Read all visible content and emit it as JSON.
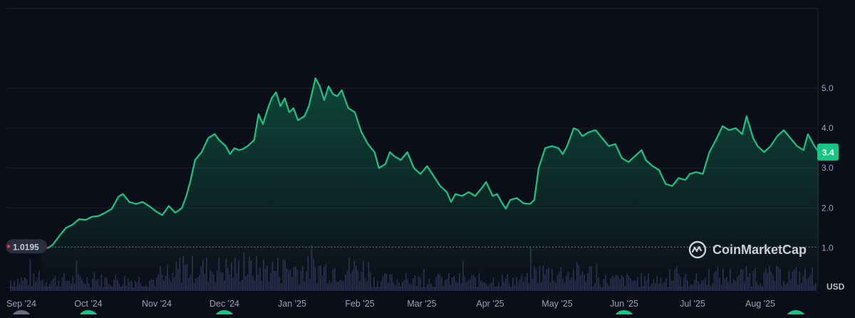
{
  "chart_data": {
    "type": "area",
    "currency": "USD",
    "x_tick_labels": [
      "Sep '24",
      "Oct '24",
      "Nov '24",
      "Dec '24",
      "Jan '25",
      "Feb '25",
      "Mar '25",
      "Apr '25",
      "May '25",
      "Jun '25",
      "Jul '25",
      "Aug '25"
    ],
    "y_tick_labels": [
      "1.0",
      "2.0",
      "3.0",
      "4.0",
      "5.0"
    ],
    "ylim": [
      0.0,
      5.9
    ],
    "baseline_label": "1.0195",
    "baseline_value": 1.0195,
    "current_label": "3.4",
    "current_value": 3.4,
    "grid": "horizontal",
    "line_color": "#16c784",
    "baseline_color": "#ea3943",
    "price_points": [
      [
        "2024-09-07",
        1.0195
      ],
      [
        "2024-09-10",
        1.0
      ],
      [
        "2024-09-12",
        1.08
      ],
      [
        "2024-09-15",
        1.3
      ],
      [
        "2024-09-18",
        1.5
      ],
      [
        "2024-09-21",
        1.58
      ],
      [
        "2024-09-24",
        1.72
      ],
      [
        "2024-09-27",
        1.7
      ],
      [
        "2024-09-30",
        1.78
      ],
      [
        "2024-10-03",
        1.8
      ],
      [
        "2024-10-06",
        1.88
      ],
      [
        "2024-10-09",
        1.98
      ],
      [
        "2024-10-12",
        2.28
      ],
      [
        "2024-10-14",
        2.35
      ],
      [
        "2024-10-17",
        2.15
      ],
      [
        "2024-10-20",
        2.1
      ],
      [
        "2024-10-23",
        2.15
      ],
      [
        "2024-10-26",
        2.05
      ],
      [
        "2024-10-29",
        1.92
      ],
      [
        "2024-11-01",
        1.82
      ],
      [
        "2024-11-04",
        2.05
      ],
      [
        "2024-11-07",
        1.88
      ],
      [
        "2024-11-10",
        2.0
      ],
      [
        "2024-11-12",
        2.3
      ],
      [
        "2024-11-14",
        2.7
      ],
      [
        "2024-11-16",
        3.2
      ],
      [
        "2024-11-19",
        3.4
      ],
      [
        "2024-11-22",
        3.75
      ],
      [
        "2024-11-25",
        3.85
      ],
      [
        "2024-11-27",
        3.7
      ],
      [
        "2024-11-30",
        3.55
      ],
      [
        "2024-12-02",
        3.35
      ],
      [
        "2024-12-04",
        3.5
      ],
      [
        "2024-12-06",
        3.45
      ],
      [
        "2024-12-08",
        3.48
      ],
      [
        "2024-12-10",
        3.55
      ],
      [
        "2024-12-13",
        3.7
      ],
      [
        "2024-12-15",
        4.35
      ],
      [
        "2024-12-17",
        4.1
      ],
      [
        "2024-12-19",
        4.45
      ],
      [
        "2024-12-21",
        4.75
      ],
      [
        "2024-12-23",
        4.9
      ],
      [
        "2024-12-25",
        4.55
      ],
      [
        "2024-12-27",
        4.75
      ],
      [
        "2024-12-29",
        4.4
      ],
      [
        "2024-12-31",
        4.5
      ],
      [
        "2025-01-02",
        4.2
      ],
      [
        "2025-01-05",
        4.3
      ],
      [
        "2025-01-07",
        4.55
      ],
      [
        "2025-01-10",
        5.25
      ],
      [
        "2025-01-12",
        5.05
      ],
      [
        "2025-01-14",
        4.7
      ],
      [
        "2025-01-16",
        5.05
      ],
      [
        "2025-01-18",
        4.85
      ],
      [
        "2025-01-20",
        4.8
      ],
      [
        "2025-01-22",
        4.95
      ],
      [
        "2025-01-25",
        4.5
      ],
      [
        "2025-01-28",
        4.4
      ],
      [
        "2025-01-31",
        3.9
      ],
      [
        "2025-02-03",
        3.6
      ],
      [
        "2025-02-06",
        3.4
      ],
      [
        "2025-02-08",
        3.0
      ],
      [
        "2025-02-11",
        3.1
      ],
      [
        "2025-02-13",
        3.4
      ],
      [
        "2025-02-15",
        3.3
      ],
      [
        "2025-02-18",
        3.2
      ],
      [
        "2025-02-21",
        3.4
      ],
      [
        "2025-02-24",
        3.0
      ],
      [
        "2025-02-27",
        2.85
      ],
      [
        "2025-03-02",
        3.05
      ],
      [
        "2025-03-05",
        2.8
      ],
      [
        "2025-03-08",
        2.55
      ],
      [
        "2025-03-11",
        2.4
      ],
      [
        "2025-03-13",
        2.15
      ],
      [
        "2025-03-15",
        2.35
      ],
      [
        "2025-03-18",
        2.3
      ],
      [
        "2025-03-21",
        2.4
      ],
      [
        "2025-03-24",
        2.3
      ],
      [
        "2025-03-27",
        2.5
      ],
      [
        "2025-03-29",
        2.65
      ],
      [
        "2025-04-01",
        2.3
      ],
      [
        "2025-04-03",
        2.35
      ],
      [
        "2025-04-05",
        2.15
      ],
      [
        "2025-04-07",
        1.98
      ],
      [
        "2025-04-09",
        2.2
      ],
      [
        "2025-04-12",
        2.25
      ],
      [
        "2025-04-15",
        2.12
      ],
      [
        "2025-04-18",
        2.1
      ],
      [
        "2025-04-20",
        2.2
      ],
      [
        "2025-04-22",
        3.0
      ],
      [
        "2025-04-25",
        3.5
      ],
      [
        "2025-04-28",
        3.55
      ],
      [
        "2025-05-01",
        3.5
      ],
      [
        "2025-05-03",
        3.35
      ],
      [
        "2025-05-05",
        3.55
      ],
      [
        "2025-05-08",
        4.0
      ],
      [
        "2025-05-10",
        3.95
      ],
      [
        "2025-05-12",
        3.8
      ],
      [
        "2025-05-15",
        3.9
      ],
      [
        "2025-05-18",
        3.95
      ],
      [
        "2025-05-21",
        3.75
      ],
      [
        "2025-05-24",
        3.55
      ],
      [
        "2025-05-27",
        3.6
      ],
      [
        "2025-05-30",
        3.25
      ],
      [
        "2025-06-02",
        3.15
      ],
      [
        "2025-06-05",
        3.3
      ],
      [
        "2025-06-08",
        3.45
      ],
      [
        "2025-06-10",
        3.2
      ],
      [
        "2025-06-13",
        3.05
      ],
      [
        "2025-06-16",
        2.95
      ],
      [
        "2025-06-19",
        2.6
      ],
      [
        "2025-06-22",
        2.55
      ],
      [
        "2025-06-25",
        2.75
      ],
      [
        "2025-06-28",
        2.7
      ],
      [
        "2025-06-30",
        2.85
      ],
      [
        "2025-07-03",
        2.9
      ],
      [
        "2025-07-06",
        2.85
      ],
      [
        "2025-07-09",
        3.4
      ],
      [
        "2025-07-12",
        3.7
      ],
      [
        "2025-07-15",
        4.05
      ],
      [
        "2025-07-18",
        3.95
      ],
      [
        "2025-07-21",
        4.0
      ],
      [
        "2025-07-24",
        3.85
      ],
      [
        "2025-07-26",
        4.3
      ],
      [
        "2025-07-29",
        3.75
      ],
      [
        "2025-07-31",
        3.55
      ],
      [
        "2025-08-03",
        3.4
      ],
      [
        "2025-08-06",
        3.55
      ],
      [
        "2025-08-09",
        3.8
      ],
      [
        "2025-08-12",
        3.95
      ],
      [
        "2025-08-15",
        3.75
      ],
      [
        "2025-08-18",
        3.55
      ],
      [
        "2025-08-21",
        3.45
      ],
      [
        "2025-08-23",
        3.85
      ],
      [
        "2025-08-26",
        3.55
      ],
      [
        "2025-08-28",
        3.4
      ]
    ]
  },
  "branding": {
    "name": "CoinMarketCap",
    "logo_icon": "coinmarketcap-logo-icon"
  },
  "axis_unit": "USD"
}
